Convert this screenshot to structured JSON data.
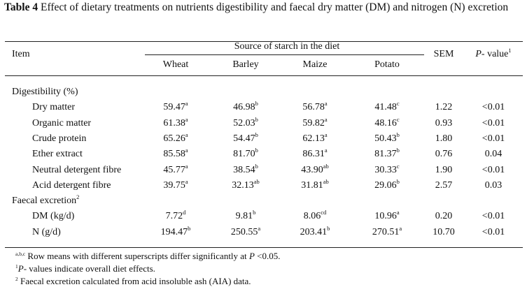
{
  "caption": {
    "label": "Table 4",
    "text": "Effect of dietary treatments on nutrients digestibility and faecal dry matter (DM) and nitrogen (N) excretion"
  },
  "header": {
    "item": "Item",
    "group": "Source of starch in the diet",
    "columns": [
      "Wheat",
      "Barley",
      "Maize",
      "Potato"
    ],
    "sem": "SEM",
    "pvalue_italic": "P",
    "pvalue_rest": "- value",
    "pvalue_sup": "1"
  },
  "sections": [
    {
      "title": "Digestibility (%)",
      "title_sup": "",
      "rows": [
        {
          "label": "Dry matter",
          "values": [
            {
              "v": "59.47",
              "s": "a"
            },
            {
              "v": "46.98",
              "s": "b"
            },
            {
              "v": "56.78",
              "s": "a"
            },
            {
              "v": "41.48",
              "s": "c"
            }
          ],
          "sem": "1.22",
          "p": "<0.01"
        },
        {
          "label": "Organic matter",
          "values": [
            {
              "v": "61.38",
              "s": "a"
            },
            {
              "v": "52.03",
              "s": "b"
            },
            {
              "v": "59.82",
              "s": "a"
            },
            {
              "v": "48.16",
              "s": "c"
            }
          ],
          "sem": "0.93",
          "p": "<0.01"
        },
        {
          "label": "Crude protein",
          "values": [
            {
              "v": "65.26",
              "s": "a"
            },
            {
              "v": "54.47",
              "s": "b"
            },
            {
              "v": "62.13",
              "s": "a"
            },
            {
              "v": "50.43",
              "s": "b"
            }
          ],
          "sem": "1.80",
          "p": "<0.01"
        },
        {
          "label": "Ether extract",
          "values": [
            {
              "v": "85.58",
              "s": "a"
            },
            {
              "v": "81.70",
              "s": "b"
            },
            {
              "v": "86.31",
              "s": "a"
            },
            {
              "v": "81.37",
              "s": "b"
            }
          ],
          "sem": "0.76",
          "p": "0.04"
        },
        {
          "label": "Neutral detergent fibre",
          "values": [
            {
              "v": "45.77",
              "s": "a"
            },
            {
              "v": "38.54",
              "s": "b"
            },
            {
              "v": "43.90",
              "s": "ab"
            },
            {
              "v": "30.33",
              "s": "c"
            }
          ],
          "sem": "1.90",
          "p": "<0.01"
        },
        {
          "label": "Acid detergent fibre",
          "values": [
            {
              "v": "39.75",
              "s": "a"
            },
            {
              "v": "32.13",
              "s": "ab"
            },
            {
              "v": "31.81",
              "s": "ab"
            },
            {
              "v": "29.06",
              "s": "b"
            }
          ],
          "sem": "2.57",
          "p": "0.03"
        }
      ]
    },
    {
      "title": "Faecal excretion",
      "title_sup": "2",
      "rows": [
        {
          "label": "DM (kg/d)",
          "values": [
            {
              "v": "7.72",
              "s": "d"
            },
            {
              "v": "9.81",
              "s": "b"
            },
            {
              "v": "8.06",
              "s": "cd"
            },
            {
              "v": "10.96",
              "s": "a"
            }
          ],
          "sem": "0.20",
          "p": "<0.01"
        },
        {
          "label": "N (g/d)",
          "values": [
            {
              "v": "194.47",
              "s": "b"
            },
            {
              "v": "250.55",
              "s": "a"
            },
            {
              "v": "203.41",
              "s": "b"
            },
            {
              "v": "270.51",
              "s": "a"
            }
          ],
          "sem": "10.70",
          "p": "<0.01"
        }
      ]
    }
  ],
  "footnotes": [
    {
      "sup": "a,b,c",
      "parts": [
        {
          "t": " Row means with different superscripts differ significantly at ",
          "i": false
        },
        {
          "t": "P",
          "i": true
        },
        {
          "t": " <0.05.",
          "i": false
        }
      ]
    },
    {
      "sup": "1",
      "parts": [
        {
          "t": "P",
          "i": true
        },
        {
          "t": "- values indicate overall diet effects.",
          "i": false
        }
      ]
    },
    {
      "sup": "2",
      "parts": [
        {
          "t": " Faecal excretion calculated from acid insoluble ash (AIA) data.",
          "i": false
        }
      ]
    }
  ]
}
